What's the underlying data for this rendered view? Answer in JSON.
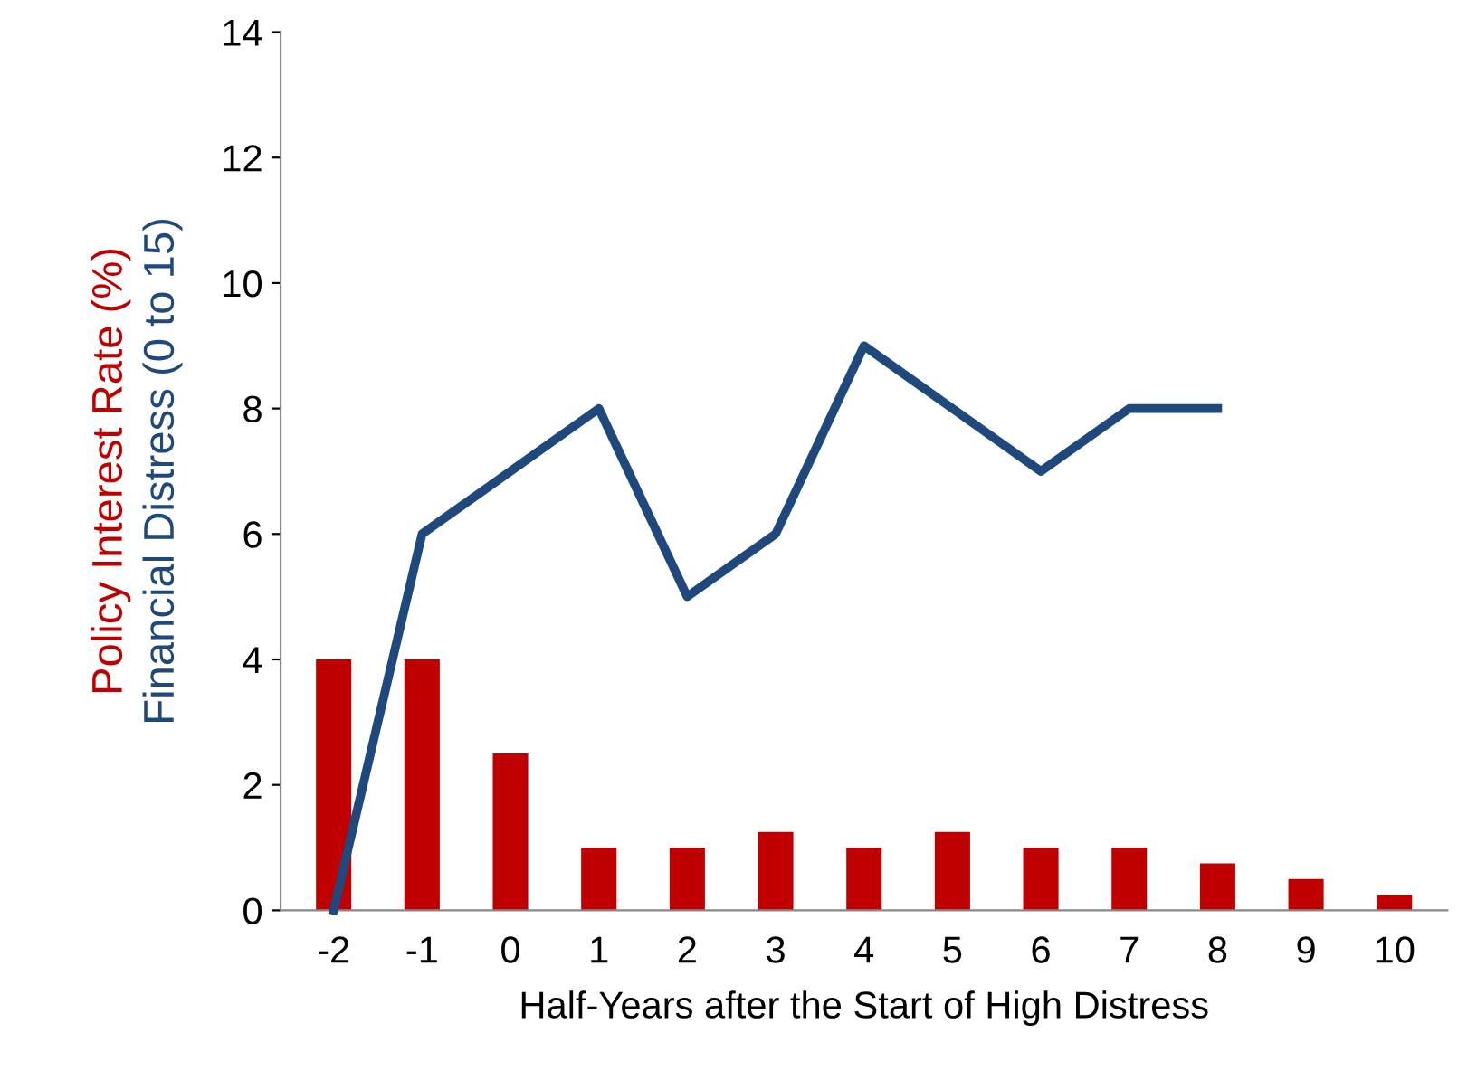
{
  "chart_data": {
    "type": "bar",
    "xlabel": "Half-Years after the Start of High Distress",
    "categories": [
      "-2",
      "-1",
      "0",
      "1",
      "2",
      "3",
      "4",
      "5",
      "6",
      "7",
      "8",
      "9",
      "10"
    ],
    "series": [
      {
        "name": "Policy Interest Rate (%)",
        "color": "#c00000",
        "values": [
          4,
          4,
          2.5,
          1,
          1,
          1.25,
          1,
          1.25,
          1,
          1,
          0.75,
          0.5,
          0.25
        ]
      },
      {
        "name": "Financial Distress (0 to 15)",
        "type": "line",
        "color": "#1f497d",
        "values": [
          0,
          6,
          7,
          8,
          5,
          6,
          9,
          8,
          7,
          8,
          8,
          null,
          null
        ]
      }
    ],
    "ylim": [
      0,
      14
    ],
    "yticks": [
      0,
      2,
      4,
      6,
      8,
      10,
      12,
      14
    ],
    "grid": false,
    "legend": false,
    "marker": "none",
    "line_style": "solid"
  }
}
